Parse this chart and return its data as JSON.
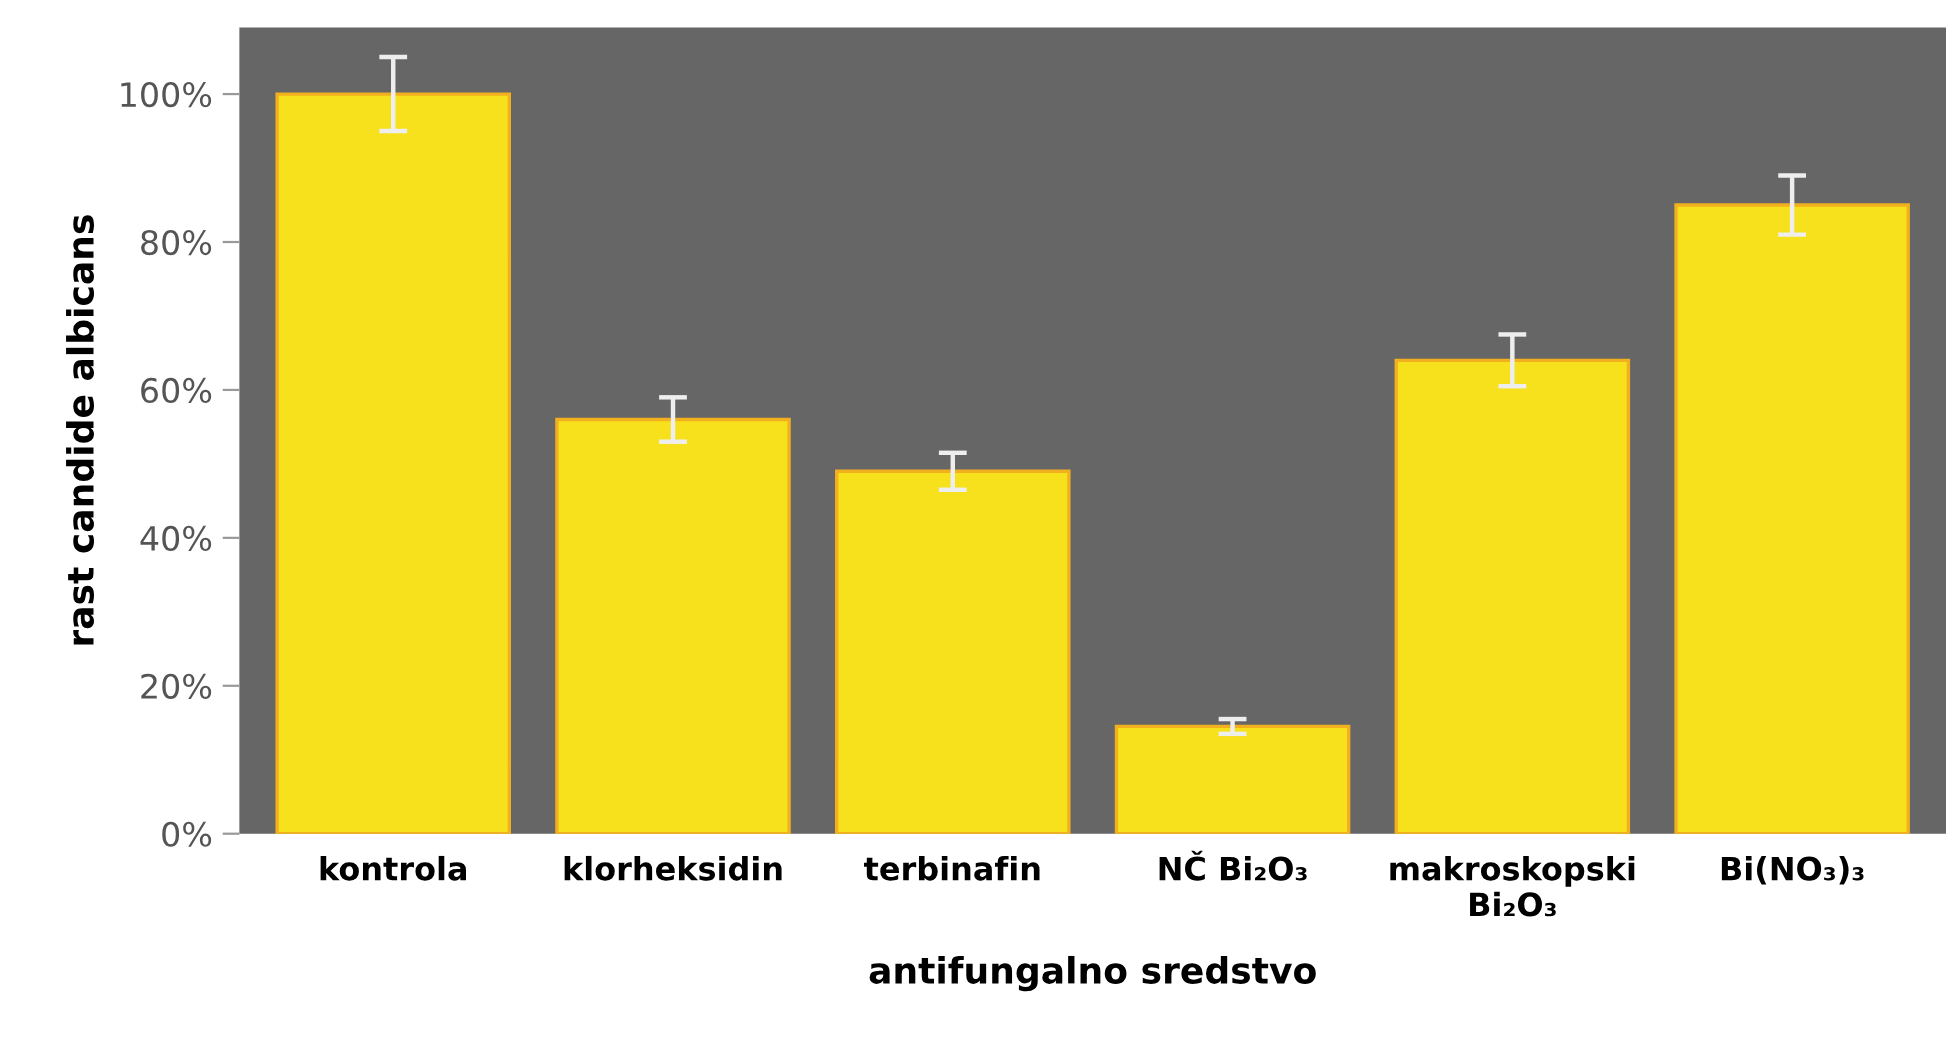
{
  "chart_data": {
    "type": "bar",
    "xlabel": "antifungalno sredstvo",
    "ylabel": "rast candide albicans",
    "categories": [
      "kontrola",
      "klorheksidin",
      "terbinafin",
      "NČ Bi₂O₃",
      "makroskopski\nBi₂O₃",
      "Bi(NO₃)₃"
    ],
    "values": [
      100,
      56,
      49,
      14.5,
      64,
      85
    ],
    "errors": [
      5,
      3,
      2.5,
      1,
      3.5,
      4
    ],
    "color": "#f7e11c",
    "ylim": [
      0,
      109
    ],
    "yticks": [
      {
        "value": 0,
        "label": "0%"
      },
      {
        "value": 20,
        "label": "20%"
      },
      {
        "value": 40,
        "label": "40%"
      },
      {
        "value": 60,
        "label": "60%"
      },
      {
        "value": 80,
        "label": "80%"
      },
      {
        "value": 100,
        "label": "100%"
      }
    ],
    "grid": false
  }
}
